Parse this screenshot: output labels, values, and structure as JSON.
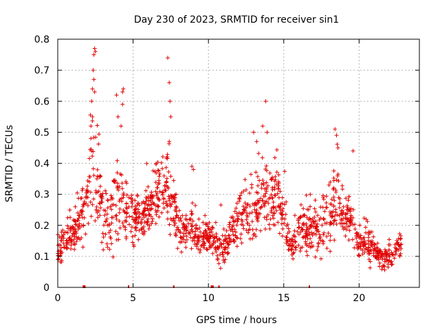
{
  "chart_data": {
    "type": "scatter",
    "title": "Day 230 of 2023, SRMTID for receiver sin1",
    "xlabel": "GPS time / hours",
    "ylabel": "SRMTID / TECUs",
    "xlim": [
      0,
      24
    ],
    "ylim": [
      0,
      0.8
    ],
    "xticks": [
      0,
      5,
      10,
      15,
      20
    ],
    "yticks": [
      0,
      0.1,
      0.2,
      0.3,
      0.4,
      0.5,
      0.6,
      0.7,
      0.8
    ],
    "xtick_labels": [
      "0",
      "5",
      "10",
      "15",
      "20"
    ],
    "ytick_labels": [
      "0",
      "0.1",
      "0.2",
      "0.3",
      "0.4",
      "0.5",
      "0.6",
      "0.7",
      "0.8"
    ],
    "grid": true,
    "marker": "+",
    "color": "#e00000",
    "series": [
      {
        "name": "SRMTID",
        "trend": [
          [
            0.0,
            0.12,
            0.04
          ],
          [
            0.5,
            0.15,
            0.05
          ],
          [
            1.0,
            0.17,
            0.05
          ],
          [
            1.5,
            0.22,
            0.07
          ],
          [
            2.0,
            0.3,
            0.12
          ],
          [
            2.3,
            0.38,
            0.18
          ],
          [
            2.7,
            0.3,
            0.12
          ],
          [
            3.0,
            0.22,
            0.08
          ],
          [
            3.5,
            0.2,
            0.09
          ],
          [
            4.0,
            0.3,
            0.14
          ],
          [
            4.5,
            0.25,
            0.1
          ],
          [
            5.0,
            0.22,
            0.06
          ],
          [
            5.5,
            0.22,
            0.06
          ],
          [
            6.0,
            0.24,
            0.06
          ],
          [
            6.5,
            0.28,
            0.08
          ],
          [
            7.0,
            0.32,
            0.1
          ],
          [
            7.5,
            0.3,
            0.1
          ],
          [
            8.0,
            0.2,
            0.06
          ],
          [
            8.5,
            0.18,
            0.05
          ],
          [
            9.0,
            0.18,
            0.06
          ],
          [
            9.5,
            0.15,
            0.04
          ],
          [
            10.0,
            0.16,
            0.04
          ],
          [
            10.5,
            0.13,
            0.05
          ],
          [
            11.0,
            0.12,
            0.05
          ],
          [
            11.5,
            0.18,
            0.05
          ],
          [
            12.0,
            0.2,
            0.06
          ],
          [
            12.5,
            0.25,
            0.1
          ],
          [
            13.0,
            0.22,
            0.08
          ],
          [
            13.5,
            0.3,
            0.1
          ],
          [
            14.0,
            0.28,
            0.1
          ],
          [
            14.5,
            0.3,
            0.1
          ],
          [
            15.0,
            0.22,
            0.07
          ],
          [
            15.5,
            0.12,
            0.04
          ],
          [
            16.0,
            0.18,
            0.06
          ],
          [
            16.5,
            0.18,
            0.06
          ],
          [
            17.0,
            0.18,
            0.06
          ],
          [
            17.5,
            0.2,
            0.07
          ],
          [
            18.0,
            0.22,
            0.07
          ],
          [
            18.5,
            0.28,
            0.1
          ],
          [
            19.0,
            0.25,
            0.08
          ],
          [
            19.5,
            0.2,
            0.06
          ],
          [
            20.0,
            0.13,
            0.04
          ],
          [
            20.5,
            0.14,
            0.05
          ],
          [
            21.0,
            0.12,
            0.04
          ],
          [
            21.5,
            0.09,
            0.03
          ],
          [
            22.0,
            0.1,
            0.03
          ],
          [
            22.5,
            0.12,
            0.04
          ],
          [
            22.8,
            0.15,
            0.04
          ]
        ],
        "peaks": [
          [
            2.2,
            0.52
          ],
          [
            2.3,
            0.64
          ],
          [
            2.35,
            0.7
          ],
          [
            2.4,
            0.75
          ],
          [
            2.45,
            0.77
          ],
          [
            2.5,
            0.76
          ],
          [
            2.25,
            0.6
          ],
          [
            2.3,
            0.55
          ],
          [
            2.2,
            0.48
          ],
          [
            2.4,
            0.67
          ],
          [
            2.45,
            0.63
          ],
          [
            3.9,
            0.62
          ],
          [
            4.0,
            0.55
          ],
          [
            4.2,
            0.52
          ],
          [
            4.3,
            0.63
          ],
          [
            4.35,
            0.64
          ],
          [
            4.3,
            0.59
          ],
          [
            7.3,
            0.74
          ],
          [
            7.4,
            0.66
          ],
          [
            7.45,
            0.6
          ],
          [
            7.5,
            0.55
          ],
          [
            7.4,
            0.47
          ],
          [
            13.0,
            0.5
          ],
          [
            13.2,
            0.47
          ],
          [
            13.6,
            0.52
          ],
          [
            13.8,
            0.6
          ],
          [
            13.9,
            0.5
          ],
          [
            18.4,
            0.51
          ],
          [
            18.5,
            0.49
          ],
          [
            18.6,
            0.45
          ],
          [
            19.6,
            0.44
          ],
          [
            8.9,
            0.39
          ],
          [
            9.0,
            0.38
          ]
        ],
        "gap_markers": [
          1.7,
          1.75,
          1.8,
          4.7,
          7.7,
          10.2,
          10.3,
          10.7,
          16.7
        ]
      }
    ]
  }
}
